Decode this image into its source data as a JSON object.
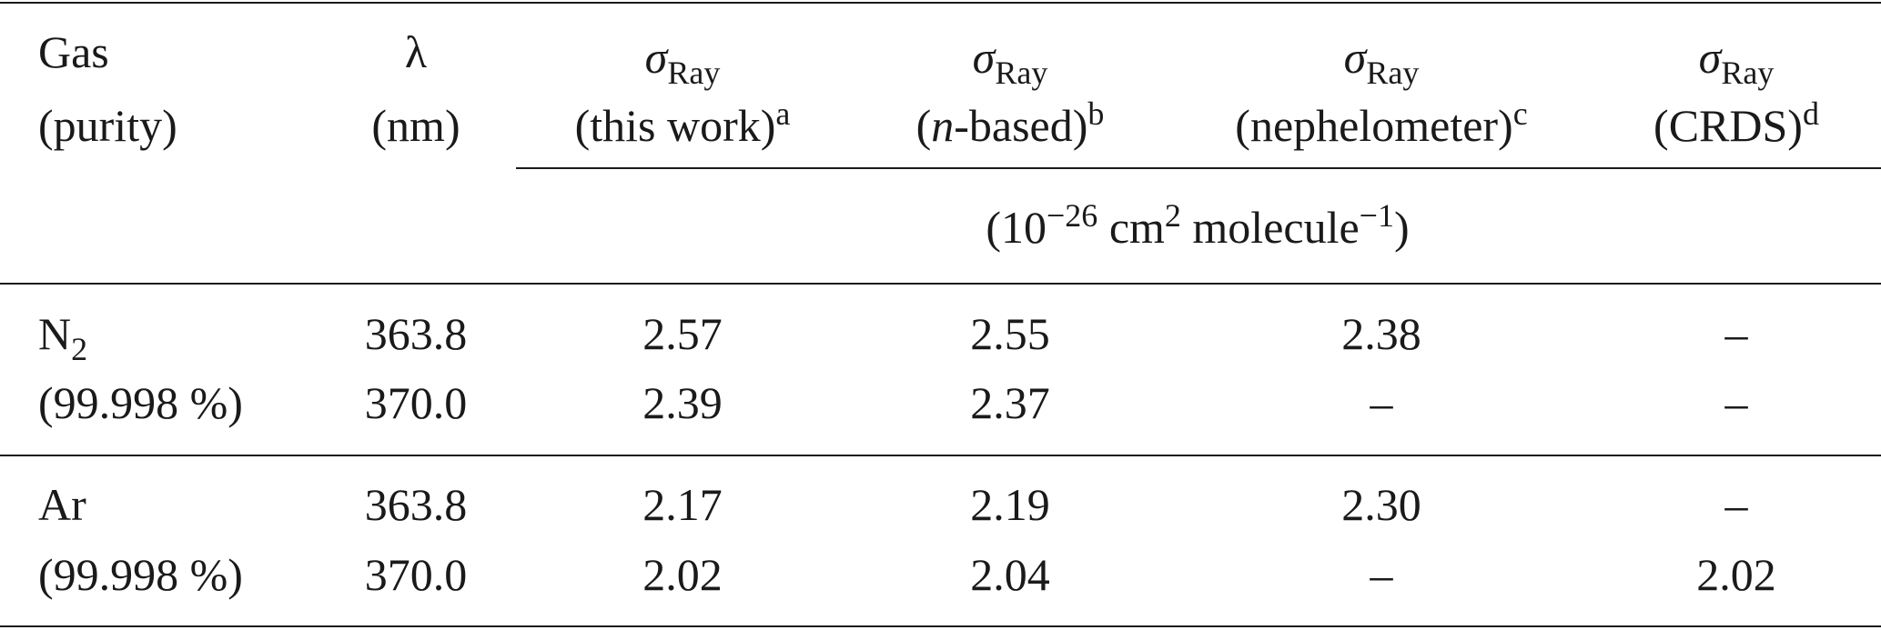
{
  "header": {
    "gas": [
      "Gas",
      "(purity)"
    ],
    "lambda": [
      "λ",
      "(nm)"
    ],
    "sigma_symbol": "σ",
    "sigma_subscript": "Ray",
    "this_work": {
      "label": "(this work)",
      "note": "a"
    },
    "n_based": {
      "italic": "n",
      "label": "-based)",
      "open": "(",
      "note": "b"
    },
    "nephelometer": {
      "label": "(nephelometer)",
      "note": "c"
    },
    "crds": {
      "label": "(CRDS)",
      "note": "d"
    },
    "units": {
      "open": "(10",
      "exp1": "−26",
      "mid": " cm",
      "exp2": "2",
      "mid2": " molecule",
      "exp3": "−1",
      "close": ")"
    }
  },
  "rows": [
    {
      "gas": "N",
      "gas_sub": "2",
      "purity": "(99.998 %)",
      "lines": [
        {
          "lambda": "363.8",
          "this_work": "2.57",
          "n_based": "2.55",
          "nephelometer": "2.38",
          "crds": "–"
        },
        {
          "lambda": "370.0",
          "this_work": "2.39",
          "n_based": "2.37",
          "nephelometer": "–",
          "crds": "–"
        }
      ]
    },
    {
      "gas": "Ar",
      "gas_sub": "",
      "purity": "(99.998 %)",
      "lines": [
        {
          "lambda": "363.8",
          "this_work": "2.17",
          "n_based": "2.19",
          "nephelometer": "2.30",
          "crds": "–"
        },
        {
          "lambda": "370.0",
          "this_work": "2.02",
          "n_based": "2.04",
          "nephelometer": "–",
          "crds": "2.02"
        }
      ]
    }
  ]
}
